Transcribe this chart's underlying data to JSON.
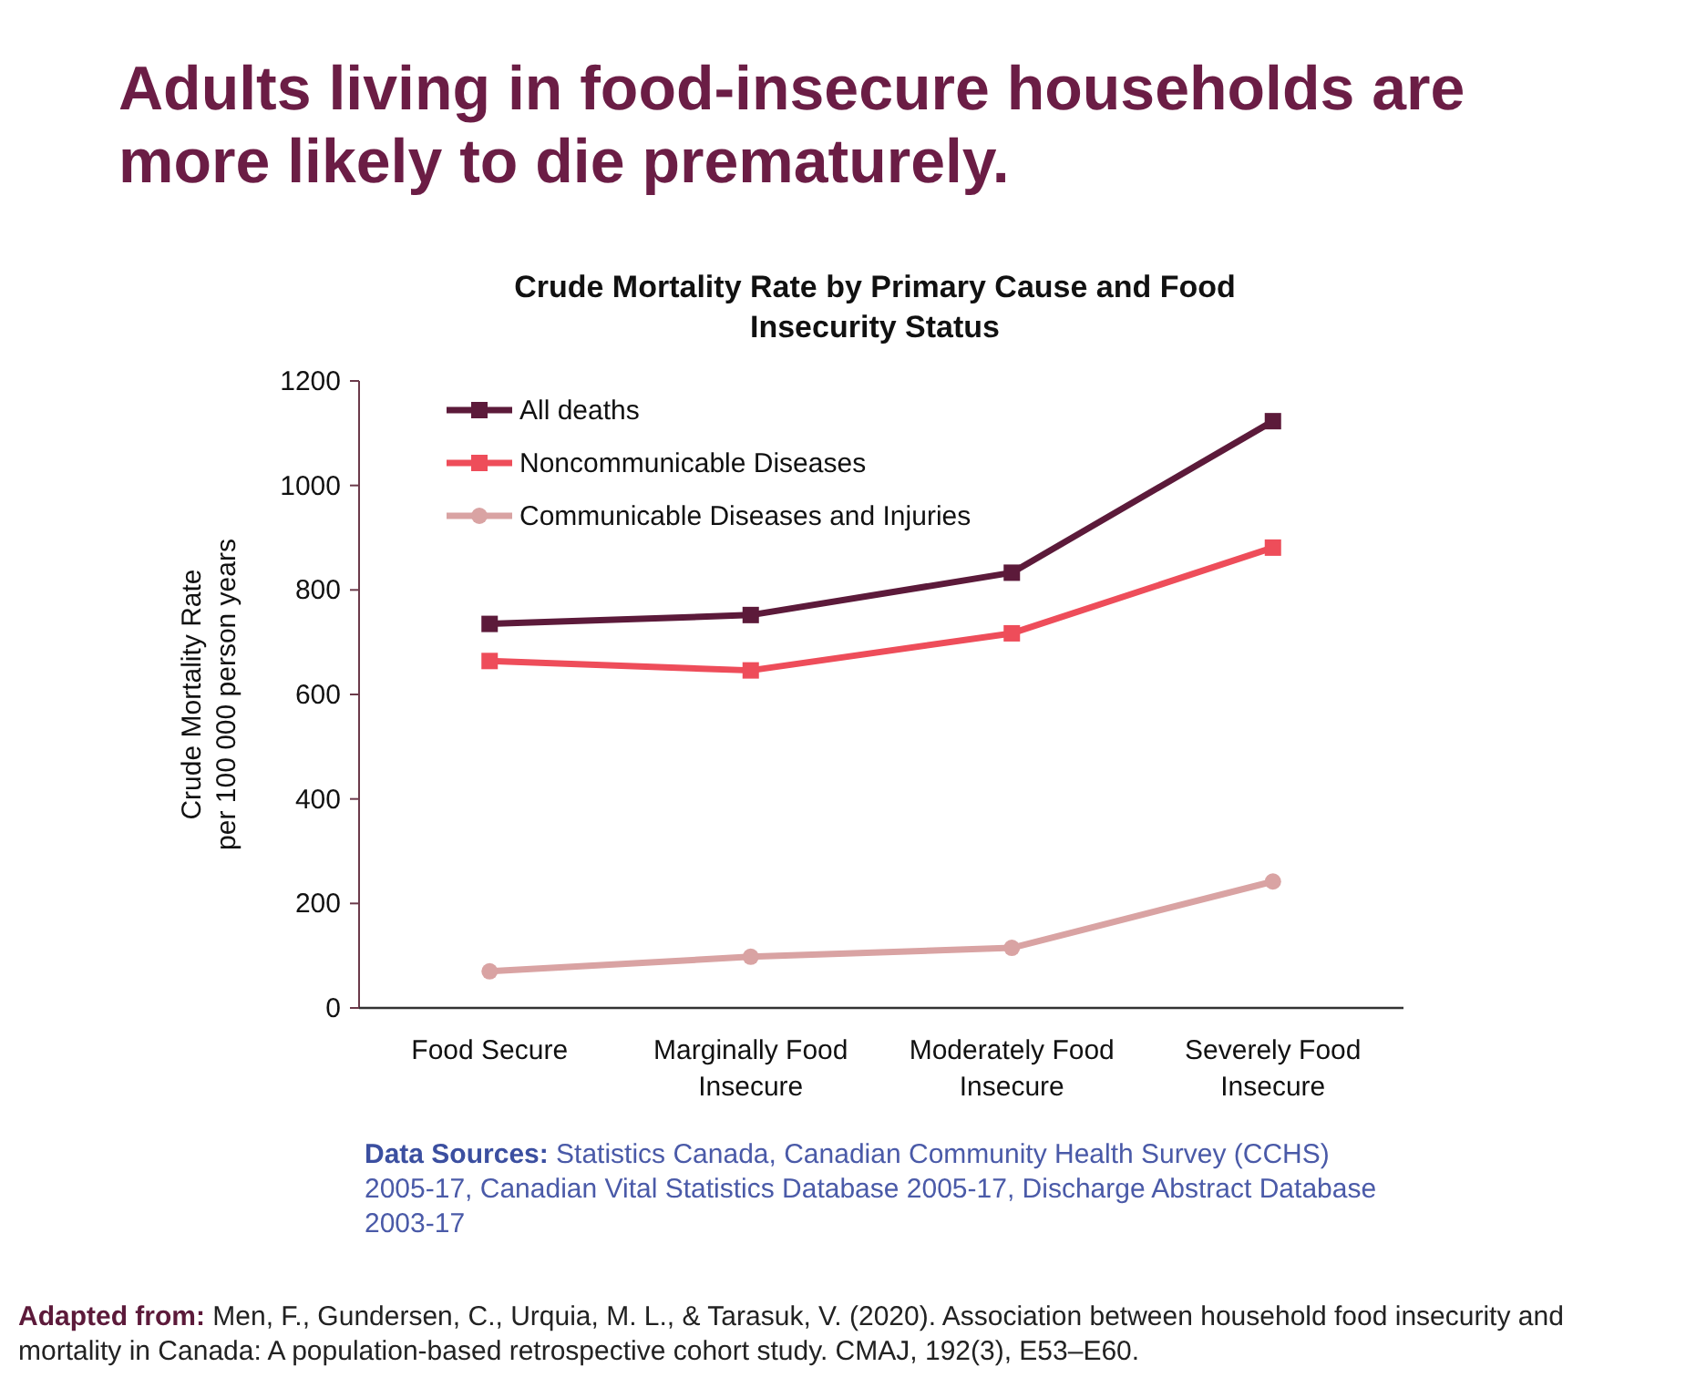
{
  "chart_data": {
    "type": "line",
    "title": "Adults living in food-insecure households are more likely to die prematurely.",
    "subtitle": "Crude Mortality Rate by Primary Cause and Food Insecurity Status",
    "ylabel": "Crude Mortality Rate\nper 100 000 person years",
    "categories": [
      "Food Secure",
      "Marginally Food Insecure",
      "Moderately Food Insecure",
      "Severely Food Insecure"
    ],
    "series": [
      {
        "name": "All deaths",
        "color": "#5c1a3a",
        "marker": "square",
        "values": [
          735,
          752,
          833,
          1123
        ]
      },
      {
        "name": "Noncommunicable Diseases",
        "color": "#ee4d5a",
        "marker": "square",
        "values": [
          664,
          646,
          717,
          881
        ]
      },
      {
        "name": "Communicable Diseases and Injuries",
        "color": "#d9a3a3",
        "marker": "circle",
        "values": [
          70,
          98,
          115,
          242
        ]
      }
    ],
    "ylim": [
      0,
      1200
    ],
    "yticks": [
      0,
      200,
      400,
      600,
      800,
      1000,
      1200
    ],
    "grid": false,
    "legend": "top left",
    "line_style": "solid",
    "annotations": [
      "Data Sources: Statistics Canada, Canadian Community Health Survey (CCHS) 2005-17, Canadian Vital Statistics Database 2005-17, Discharge Abstract Database 2003-17",
      "Adapted from: Men, F., Gundersen, C., Urquia, M. L., & Tarasuk, V. (2020). Association between household food insecurity and mortality in Canada: A population-based retrospective cohort study. CMAJ, 192(3), E53–E60."
    ]
  }
}
